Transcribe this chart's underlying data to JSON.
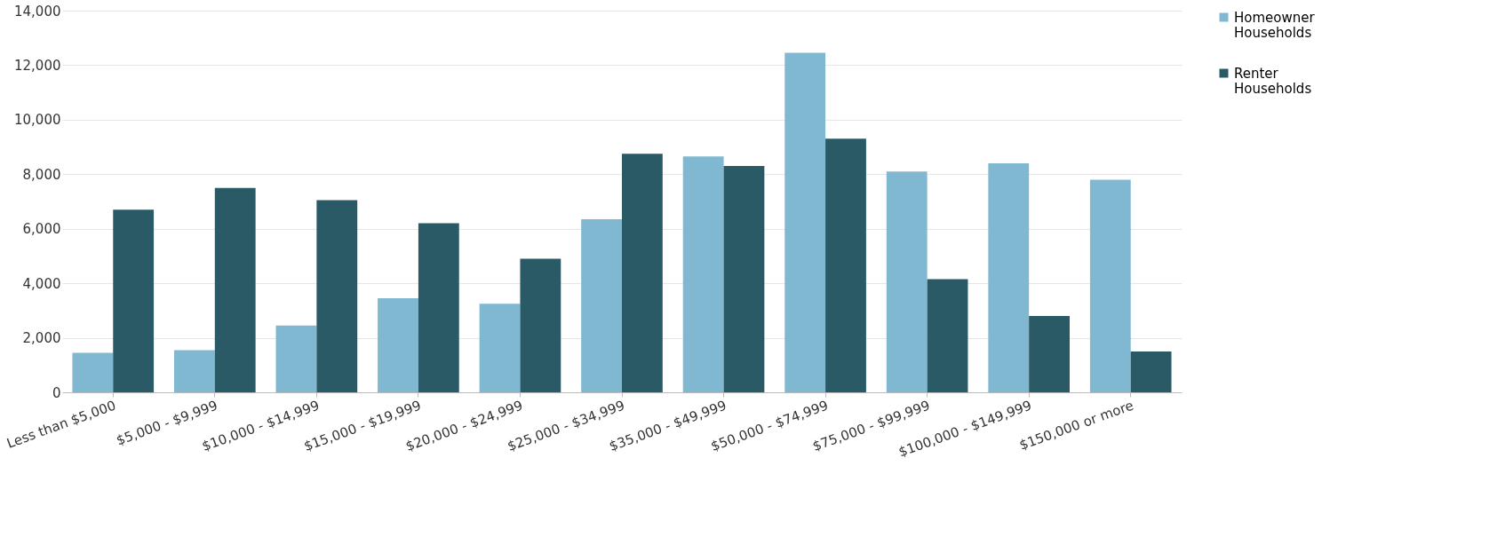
{
  "chart_data": {
    "type": "bar",
    "categories": [
      "Less than $5,000",
      "$5,000 - $9,999",
      "$10,000 - $14,999",
      "$15,000 - $19,999",
      "$20,000 - $24,999",
      "$25,000 - $34,999",
      "$35,000 - $49,999",
      "$50,000 - $74,999",
      "$75,000 - $99,999",
      "$100,000 - $149,999",
      "$150,000 or more"
    ],
    "series": [
      {
        "name": "Homeowner Households",
        "color": "#7fb8d0",
        "values": [
          1450,
          1550,
          2450,
          3450,
          3250,
          6350,
          8650,
          12450,
          8100,
          8400,
          7800
        ]
      },
      {
        "name": "Renter Households",
        "color": "#2a5a66",
        "values": [
          6700,
          7500,
          7050,
          6200,
          4900,
          8750,
          8300,
          9300,
          4150,
          2800,
          1500
        ]
      }
    ],
    "ylim": [
      0,
      14000
    ],
    "yticks": [
      0,
      {
        "value": 2000,
        "label": "2,000"
      },
      {
        "value": 4000,
        "label": "4,000"
      },
      {
        "value": 6000,
        "label": "6,000"
      },
      {
        "value": 8000,
        "label": "8,000"
      },
      {
        "value": 10000,
        "label": "10,000"
      },
      {
        "value": 12000,
        "label": "12,000"
      },
      {
        "value": 14000,
        "label": "14,000"
      }
    ],
    "grid": "y",
    "legend": "right"
  }
}
